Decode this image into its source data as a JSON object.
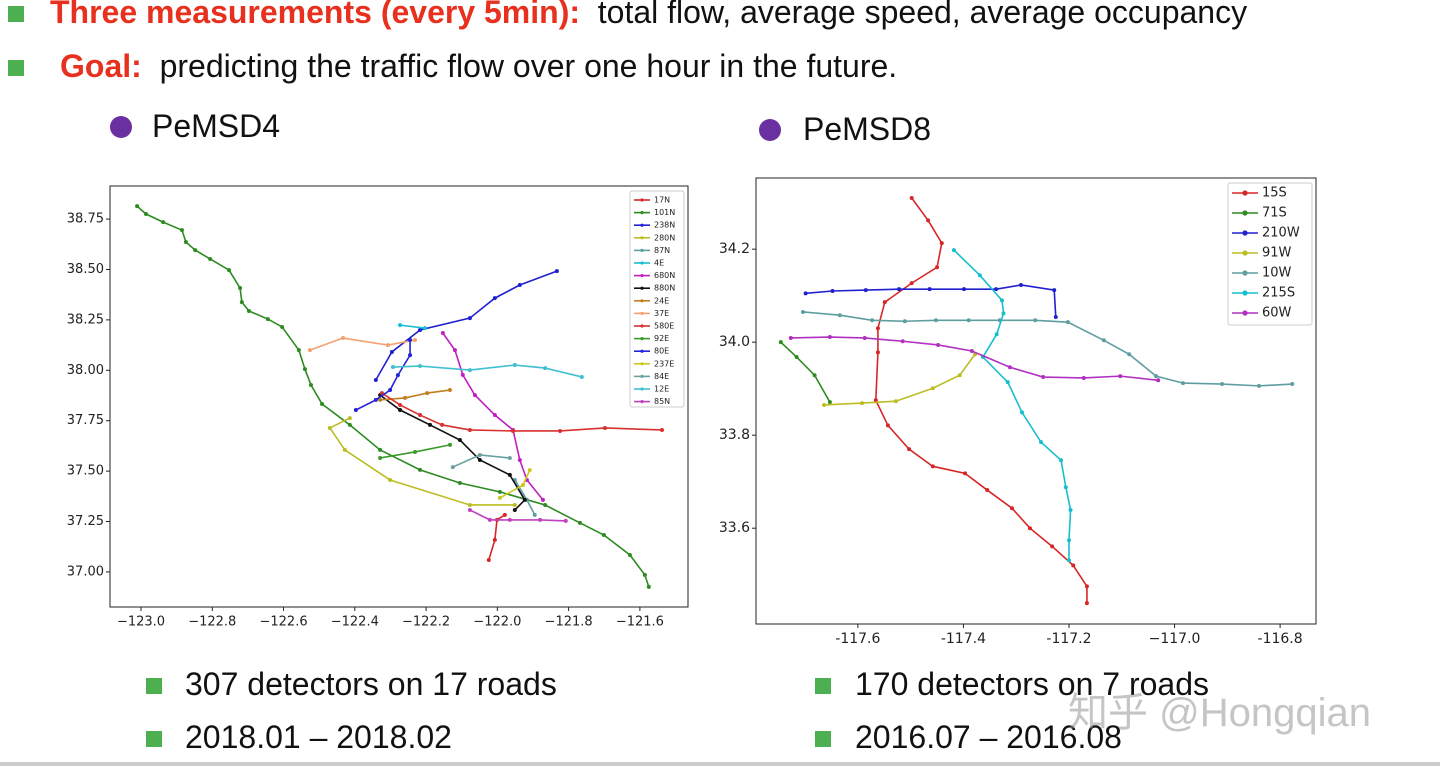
{
  "bullets": [
    {
      "label": "Three measurements (every 5min):",
      "text": "total flow, average speed, average occupancy"
    },
    {
      "label": "Goal:",
      "text": "predicting the traffic flow over one hour in the future."
    }
  ],
  "datasets": [
    {
      "name": "PeMSD4",
      "facts": [
        "307 detectors on 17 roads",
        "2018.01 – 2018.02"
      ]
    },
    {
      "name": "PeMSD8",
      "facts": [
        "170 detectors on 7 roads",
        "2016.07 – 2016.08"
      ]
    }
  ],
  "watermark": "知乎 @Hongqian",
  "chart_data": [
    {
      "type": "line",
      "xlim": [
        -123.087,
        -121.465
      ],
      "ylim": [
        36.826,
        38.914
      ],
      "xticks": [
        {
          "value": -123.0,
          "label": "−123.0"
        },
        {
          "value": -122.8,
          "label": "−122.8"
        },
        {
          "value": -122.6,
          "label": "−122.6"
        },
        {
          "value": -122.4,
          "label": "−122.4"
        },
        {
          "value": -122.2,
          "label": "−122.2"
        },
        {
          "value": -122.0,
          "label": "−122.0"
        },
        {
          "value": -121.8,
          "label": "−121.8"
        },
        {
          "value": -121.6,
          "label": "−121.6"
        }
      ],
      "yticks": [
        {
          "value": 37.0,
          "label": "37.00"
        },
        {
          "value": 37.25,
          "label": "37.25"
        },
        {
          "value": 37.5,
          "label": "37.50"
        },
        {
          "value": 37.75,
          "label": "37.75"
        },
        {
          "value": 38.0,
          "label": "38.00"
        },
        {
          "value": 38.25,
          "label": "38.25"
        },
        {
          "value": 38.5,
          "label": "38.50"
        },
        {
          "value": 38.75,
          "label": "38.75"
        }
      ],
      "legend": "upper right",
      "series": [
        {
          "name": "17N",
          "color": "#d62728",
          "x": [
            -122.024,
            -122.007,
            -122.001,
            -121.979
          ],
          "values": [
            37.059,
            37.159,
            37.258,
            37.283
          ]
        },
        {
          "name": "101N",
          "color": "#2e8b22",
          "x": [
            -123.011,
            -122.986,
            -122.938,
            -122.885,
            -122.874,
            -122.848,
            -122.806,
            -122.753,
            -122.722,
            -122.717,
            -122.697,
            -122.644,
            -122.604,
            -122.557,
            -122.54,
            -122.523,
            -122.492,
            -122.414,
            -122.329,
            -122.217,
            -122.105,
            -121.993,
            -121.866,
            -121.768,
            -121.701,
            -121.628,
            -121.586,
            -121.575
          ],
          "values": [
            38.814,
            38.775,
            38.735,
            38.695,
            38.636,
            38.596,
            38.552,
            38.497,
            38.408,
            38.338,
            38.294,
            38.254,
            38.215,
            38.1,
            38.006,
            37.927,
            37.833,
            37.729,
            37.605,
            37.506,
            37.441,
            37.397,
            37.332,
            37.243,
            37.183,
            37.084,
            36.985,
            36.926
          ]
        },
        {
          "name": "238N",
          "color": "#2020d0",
          "x": [
            -122.341,
            -122.296,
            -122.217,
            -122.077,
            -122.007,
            -121.937,
            -121.833
          ],
          "values": [
            37.952,
            38.091,
            38.2,
            38.259,
            38.358,
            38.423,
            38.492
          ]
        },
        {
          "name": "280N",
          "color": "#bcbd22",
          "x": [
            -122.414,
            -122.47,
            -122.428,
            -122.301,
            -122.077,
            -121.951
          ],
          "values": [
            37.763,
            37.714,
            37.605,
            37.456,
            37.332,
            37.332
          ]
        },
        {
          "name": "87N",
          "color": "#5f9ea0",
          "x": [
            -121.951,
            -121.917,
            -121.895
          ],
          "values": [
            37.456,
            37.357,
            37.283
          ]
        },
        {
          "name": "4E",
          "color": "#17becf",
          "x": [
            -122.273,
            -122.203
          ],
          "values": [
            38.224,
            38.209
          ]
        },
        {
          "name": "680N",
          "color": "#c020c0",
          "x": [
            -122.153,
            -122.119,
            -122.097,
            -122.063,
            -122.007,
            -121.956,
            -121.937,
            -121.917,
            -121.872
          ],
          "values": [
            38.185,
            38.1,
            37.977,
            37.877,
            37.778,
            37.704,
            37.555,
            37.456,
            37.357
          ]
        },
        {
          "name": "880N",
          "color": "#111111",
          "x": [
            -122.329,
            -122.273,
            -122.189,
            -122.105,
            -122.049,
            -121.965,
            -121.923,
            -121.951
          ],
          "values": [
            37.877,
            37.803,
            37.729,
            37.654,
            37.555,
            37.481,
            37.357,
            37.307
          ]
        },
        {
          "name": "24E",
          "color": "#c08020",
          "x": [
            -122.329,
            -122.259,
            -122.197,
            -122.133
          ],
          "values": [
            37.853,
            37.863,
            37.887,
            37.902
          ]
        },
        {
          "name": "37E",
          "color": "#f4a070",
          "x": [
            -122.526,
            -122.433,
            -122.307,
            -122.231
          ],
          "values": [
            38.1,
            38.16,
            38.125,
            38.15
          ]
        },
        {
          "name": "580E",
          "color": "#d93030",
          "x": [
            -122.324,
            -122.273,
            -122.217,
            -122.155,
            -122.077,
            -121.956,
            -121.824,
            -121.698,
            -121.538
          ],
          "values": [
            37.887,
            37.828,
            37.778,
            37.729,
            37.704,
            37.699,
            37.699,
            37.714,
            37.704
          ]
        },
        {
          "name": "92E",
          "color": "#3a9a2a",
          "x": [
            -122.329,
            -122.231,
            -122.133
          ],
          "values": [
            37.565,
            37.595,
            37.63
          ]
        },
        {
          "name": "80E",
          "color": "#2424d8",
          "x": [
            -122.397,
            -122.341,
            -122.301,
            -122.279,
            -122.245,
            -122.245
          ],
          "values": [
            37.803,
            37.853,
            37.902,
            37.976,
            38.075,
            38.15
          ]
        },
        {
          "name": "237E",
          "color": "#c8c820",
          "x": [
            -121.993,
            -121.928,
            -121.909
          ],
          "values": [
            37.367,
            37.431,
            37.505
          ]
        },
        {
          "name": "84E",
          "color": "#6aa0a0",
          "x": [
            -122.125,
            -122.049,
            -121.965
          ],
          "values": [
            37.52,
            37.58,
            37.565
          ]
        },
        {
          "name": "12E",
          "color": "#40c0d0",
          "x": [
            -122.293,
            -122.217,
            -122.077,
            -121.951,
            -121.866,
            -121.763
          ],
          "values": [
            38.016,
            38.021,
            38.001,
            38.026,
            38.011,
            37.967
          ]
        },
        {
          "name": "85N",
          "color": "#c040c0",
          "x": [
            -122.077,
            -122.021,
            -121.965,
            -121.88,
            -121.808
          ],
          "values": [
            37.307,
            37.258,
            37.258,
            37.258,
            37.253
          ]
        }
      ]
    },
    {
      "type": "line",
      "xlim": [
        -117.793,
        -116.732
      ],
      "ylim": [
        33.394,
        34.353
      ],
      "xticks": [
        -117.6,
        -117.4,
        -117.2,
        {
          "value": -117.0,
          "label": "−117.0"
        },
        -116.8
      ],
      "yticks": [
        33.6,
        33.8,
        {
          "value": 34.0,
          "label": "34.0"
        },
        34.2
      ],
      "legend": "upper right",
      "series": [
        {
          "name": "15S",
          "color": "#d62728",
          "x": [
            -117.498,
            -117.467,
            -117.441,
            -117.45,
            -117.498,
            -117.549,
            -117.562,
            -117.562,
            -117.566,
            -117.543,
            -117.503,
            -117.458,
            -117.397,
            -117.355,
            -117.308,
            -117.274,
            -117.232,
            -117.192,
            -117.166,
            -117.166
          ],
          "values": [
            34.31,
            34.262,
            34.213,
            34.161,
            34.127,
            34.086,
            34.03,
            33.978,
            33.875,
            33.821,
            33.77,
            33.733,
            33.718,
            33.682,
            33.643,
            33.6,
            33.561,
            33.52,
            33.475,
            33.439
          ]
        },
        {
          "name": "71S",
          "color": "#2e8b22",
          "x": [
            -117.746,
            -117.716,
            -117.682,
            -117.653
          ],
          "values": [
            34.0,
            33.968,
            33.929,
            33.871
          ]
        },
        {
          "name": "210W",
          "color": "#2020d0",
          "x": [
            -117.699,
            -117.648,
            -117.585,
            -117.522,
            -117.464,
            -117.399,
            -117.338,
            -117.291,
            -117.228,
            -117.225
          ],
          "values": [
            34.105,
            34.11,
            34.112,
            34.114,
            34.114,
            34.114,
            34.114,
            34.123,
            34.112,
            34.054
          ]
        },
        {
          "name": "91W",
          "color": "#bcbd22",
          "x": [
            -117.664,
            -117.592,
            -117.528,
            -117.458,
            -117.407,
            -117.378
          ],
          "values": [
            33.865,
            33.869,
            33.873,
            33.901,
            33.929,
            33.974
          ]
        },
        {
          "name": "10W",
          "color": "#5f9ea0",
          "x": [
            -117.704,
            -117.634,
            -117.573,
            -117.511,
            -117.452,
            -117.39,
            -117.331,
            -117.264,
            -117.202,
            -117.134,
            -117.086,
            -117.035,
            -116.984,
            -116.91,
            -116.84,
            -116.777
          ],
          "values": [
            34.065,
            34.058,
            34.047,
            34.045,
            34.047,
            34.047,
            34.047,
            34.047,
            34.043,
            34.004,
            33.974,
            33.927,
            33.912,
            33.91,
            33.906,
            33.91
          ]
        },
        {
          "name": "215S",
          "color": "#17becf",
          "x": [
            -117.418,
            -117.369,
            -117.327,
            -117.324,
            -117.337,
            -117.363,
            -117.316,
            -117.289,
            -117.253,
            -117.215,
            -117.206,
            -117.197,
            -117.2,
            -117.2
          ],
          "values": [
            34.198,
            34.144,
            34.09,
            34.062,
            34.017,
            33.968,
            33.914,
            33.849,
            33.785,
            33.746,
            33.688,
            33.639,
            33.574,
            33.531
          ]
        },
        {
          "name": "60W",
          "color": "#b030c0",
          "x": [
            -117.727,
            -117.653,
            -117.587,
            -117.515,
            -117.448,
            -117.384,
            -117.312,
            -117.249,
            -117.172,
            -117.103,
            -117.031
          ],
          "values": [
            34.009,
            34.011,
            34.009,
            34.002,
            33.994,
            33.981,
            33.946,
            33.925,
            33.923,
            33.927,
            33.918
          ]
        }
      ]
    }
  ]
}
